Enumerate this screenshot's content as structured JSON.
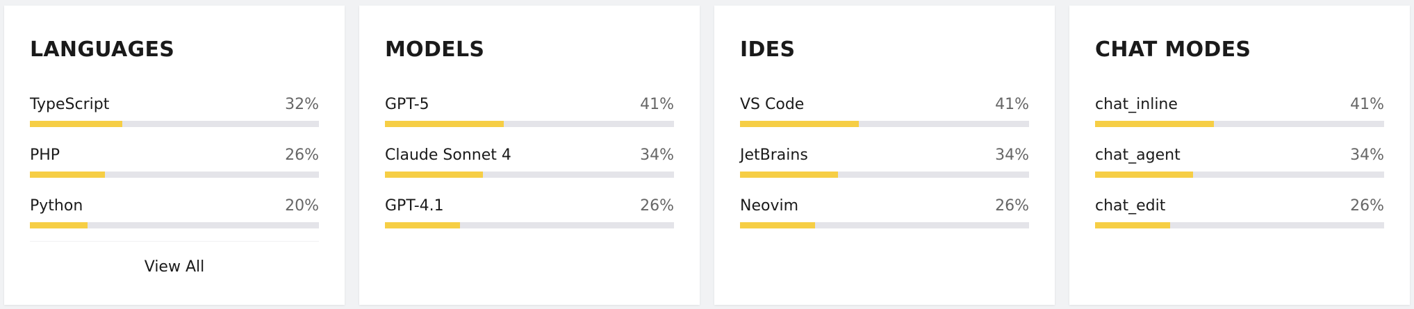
{
  "panels": [
    {
      "title": "LANGUAGES",
      "items": [
        {
          "name": "TypeScript",
          "value": 32,
          "label": "32%"
        },
        {
          "name": "PHP",
          "value": 26,
          "label": "26%"
        },
        {
          "name": "Python",
          "value": 20,
          "label": "20%"
        }
      ],
      "footer": "View All"
    },
    {
      "title": "MODELS",
      "items": [
        {
          "name": "GPT-5",
          "value": 41,
          "label": "41%"
        },
        {
          "name": "Claude Sonnet 4",
          "value": 34,
          "label": "34%"
        },
        {
          "name": "GPT-4.1",
          "value": 26,
          "label": "26%"
        }
      ]
    },
    {
      "title": "IDES",
      "items": [
        {
          "name": "VS Code",
          "value": 41,
          "label": "41%"
        },
        {
          "name": "JetBrains",
          "value": 34,
          "label": "34%"
        },
        {
          "name": "Neovim",
          "value": 26,
          "label": "26%"
        }
      ]
    },
    {
      "title": "CHAT MODES",
      "items": [
        {
          "name": "chat_inline",
          "value": 41,
          "label": "41%"
        },
        {
          "name": "chat_agent",
          "value": 34,
          "label": "34%"
        },
        {
          "name": "chat_edit",
          "value": 26,
          "label": "26%"
        }
      ]
    }
  ]
}
